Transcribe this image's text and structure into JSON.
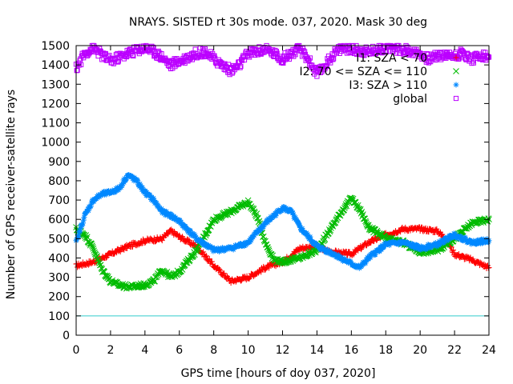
{
  "chart_data": {
    "type": "scatter",
    "title": "NRAYS. SISTED rt 30s mode. 037, 2020. Mask 30 deg",
    "xlabel": "GPS time [hours of doy 037, 2020]",
    "ylabel": "Number of GPS receiver-satellite rays",
    "xlim": [
      0,
      24
    ],
    "ylim": [
      0,
      1500
    ],
    "xticks": [
      0,
      2,
      4,
      6,
      8,
      10,
      12,
      14,
      16,
      18,
      20,
      22,
      24
    ],
    "yticks": [
      0,
      100,
      200,
      300,
      400,
      500,
      600,
      700,
      800,
      900,
      1000,
      1100,
      1200,
      1300,
      1400,
      1500
    ],
    "reference_line": {
      "y": 100,
      "color": "#33cccc"
    },
    "legend_position": "top-right",
    "series": [
      {
        "name": "I1: SZA < 70",
        "color": "#ff0000",
        "marker": "plus",
        "x": [
          0,
          1,
          2,
          3,
          4,
          5,
          5.5,
          6,
          7,
          8,
          9,
          10,
          11,
          12,
          13,
          14,
          14.5,
          15,
          16,
          16.5,
          17,
          18,
          19,
          20,
          21,
          21.5,
          22,
          23,
          24
        ],
        "y": [
          360,
          380,
          420,
          460,
          490,
          500,
          540,
          510,
          460,
          360,
          280,
          300,
          350,
          380,
          450,
          460,
          440,
          430,
          420,
          450,
          480,
          520,
          550,
          550,
          540,
          500,
          420,
          390,
          350
        ]
      },
      {
        "name": "I2: 70 <= SZA <= 110",
        "color": "#00bb00",
        "marker": "x",
        "x": [
          0,
          0.5,
          1,
          1.5,
          2,
          2.5,
          3,
          3.5,
          4,
          4.5,
          5,
          5.5,
          6,
          7,
          8,
          9,
          10,
          10.5,
          11,
          11.5,
          12,
          13,
          14,
          15,
          15.5,
          16,
          16.5,
          17,
          18,
          19,
          20,
          21,
          22,
          23,
          24
        ],
        "y": [
          550,
          520,
          450,
          340,
          280,
          260,
          250,
          255,
          260,
          280,
          340,
          300,
          330,
          440,
          600,
          640,
          690,
          620,
          480,
          390,
          380,
          400,
          440,
          580,
          650,
          710,
          650,
          560,
          500,
          480,
          430,
          440,
          500,
          580,
          600
        ]
      },
      {
        "name": "I3: SZA > 110",
        "color": "#0088ff",
        "marker": "star",
        "x": [
          0,
          0.5,
          1,
          1.5,
          2,
          2.5,
          3,
          3.5,
          4,
          4.5,
          5,
          5.5,
          6,
          7,
          8,
          9,
          10,
          11,
          12,
          12.5,
          13,
          14,
          15,
          16,
          16.5,
          17,
          18,
          19,
          20,
          21,
          22,
          23,
          24
        ],
        "y": [
          480,
          620,
          700,
          730,
          740,
          760,
          830,
          800,
          740,
          700,
          640,
          620,
          590,
          500,
          440,
          450,
          480,
          580,
          660,
          640,
          560,
          460,
          420,
          370,
          350,
          400,
          470,
          480,
          450,
          470,
          520,
          480,
          490
        ]
      },
      {
        "name": "global",
        "color": "#bb00ff",
        "marker": "square",
        "x": [
          0,
          0.5,
          1,
          1.5,
          2,
          2.5,
          3,
          4,
          4.5,
          5,
          5.5,
          6,
          6.5,
          7,
          7.5,
          8,
          8.5,
          9,
          9.5,
          10,
          11,
          11.5,
          12,
          12.5,
          13,
          13.5,
          14,
          14.5,
          15,
          15.5,
          16,
          17,
          18,
          19,
          19.5,
          20,
          20.5,
          21,
          22,
          22.5,
          23,
          23.5,
          24
        ],
        "y": [
          1380,
          1460,
          1490,
          1450,
          1420,
          1440,
          1460,
          1490,
          1470,
          1440,
          1400,
          1420,
          1440,
          1460,
          1470,
          1430,
          1400,
          1370,
          1400,
          1460,
          1480,
          1460,
          1430,
          1460,
          1480,
          1430,
          1350,
          1400,
          1460,
          1490,
          1480,
          1470,
          1490,
          1480,
          1470,
          1460,
          1430,
          1450,
          1450,
          1460,
          1430,
          1450,
          1440
        ]
      }
    ]
  }
}
